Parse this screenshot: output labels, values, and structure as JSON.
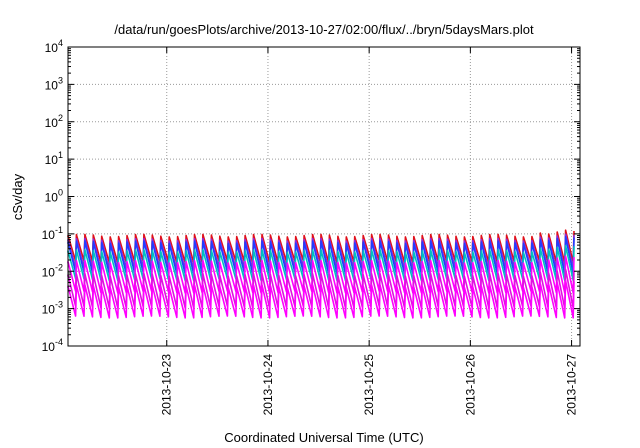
{
  "chart_data": {
    "type": "line",
    "title": "/data/run/goesPlots/archive/2013-10-27/02:00/flux/../bryn/5daysMars.plot",
    "xlabel": "Coordinated Universal Time (UTC)",
    "ylabel": "cSv/day",
    "yscale": "log",
    "ylim": [
      0.0001,
      10000
    ],
    "xlim": [
      "2013-10-22T00:35",
      "2013-10-27T02:00"
    ],
    "grid": true,
    "y_ticks": [
      {
        "base": "10",
        "exp": "-4",
        "value": 0.0001
      },
      {
        "base": "10",
        "exp": "-3",
        "value": 0.001
      },
      {
        "base": "10",
        "exp": "-2",
        "value": 0.01
      },
      {
        "base": "10",
        "exp": "-1",
        "value": 0.1
      },
      {
        "base": "10",
        "exp": "0",
        "value": 1
      },
      {
        "base": "10",
        "exp": "1",
        "value": 10
      },
      {
        "base": "10",
        "exp": "2",
        "value": 100
      },
      {
        "base": "10",
        "exp": "3",
        "value": 1000
      },
      {
        "base": "10",
        "exp": "4",
        "value": 10000
      }
    ],
    "x_ticks": [
      {
        "label": "2013-10-23",
        "value": "2013-10-23T00:00"
      },
      {
        "label": "2013-10-24",
        "value": "2013-10-24T00:00"
      },
      {
        "label": "2013-10-25",
        "value": "2013-10-25T00:00"
      },
      {
        "label": "2013-10-26",
        "value": "2013-10-26T00:00"
      },
      {
        "label": "2013-10-27",
        "value": "2013-10-27T00:00"
      }
    ],
    "sawtooth": {
      "first_peak": "2013-10-22T00:35",
      "period_hours": 2.0,
      "note_peaks_near_end_higher": "2013-10-26T15:00"
    },
    "series": [
      {
        "color": "#e0101a",
        "peak": 0.09,
        "trough": 0.018
      },
      {
        "color": "#8a2be2",
        "peak": 0.07,
        "trough": 0.012
      },
      {
        "color": "#1f3fff",
        "peak": 0.06,
        "trough": 0.009
      },
      {
        "color": "#00c0c0",
        "peak": 0.035,
        "trough": 0.006
      },
      {
        "color": "#ff00ff",
        "peak": 0.018,
        "trough": 0.0028
      },
      {
        "color": "#e010e0",
        "peak": 0.008,
        "trough": 0.0011
      },
      {
        "color": "#ff00ff",
        "peak": 0.004,
        "trough": 0.0006
      }
    ]
  }
}
